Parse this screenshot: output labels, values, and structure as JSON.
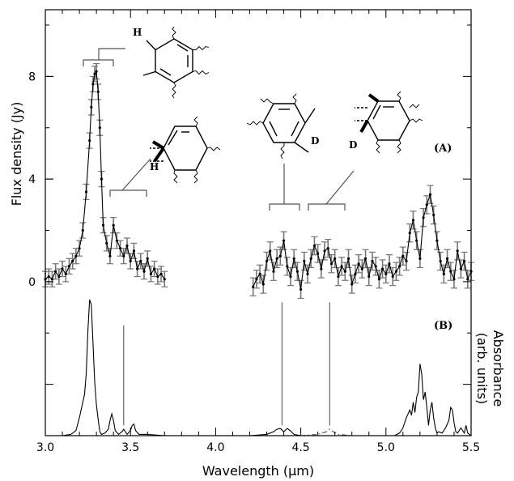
{
  "chart_data": {
    "type": "line",
    "xlabel": "Wavelength (μm)",
    "ylabel": "Flux density (Jy)",
    "ylabel_right": "Absorbance\n(arb. units)",
    "xlim": [
      3.0,
      5.5
    ],
    "ylim": [
      -6,
      10.6
    ],
    "x_ticks": [
      3.0,
      3.5,
      4.0,
      4.5,
      5.0,
      5.5
    ],
    "y_ticks": [
      0,
      4,
      8
    ],
    "panel_labels": [
      "(A)",
      "(B)"
    ],
    "atom_labels": [
      "H",
      "H",
      "D",
      "D"
    ],
    "series": [
      {
        "key": "A",
        "kind": "flux_with_errorbars",
        "segments": [
          {
            "x": [
              3.0,
              3.02,
              3.04,
              3.06,
              3.08,
              3.1,
              3.12,
              3.14,
              3.16,
              3.18,
              3.2,
              3.22,
              3.24,
              3.26,
              3.27,
              3.28,
              3.29,
              3.3,
              3.31,
              3.32,
              3.33,
              3.34,
              3.36,
              3.38,
              3.4,
              3.42,
              3.44,
              3.46,
              3.48,
              3.5,
              3.52,
              3.54,
              3.56,
              3.58,
              3.6,
              3.62,
              3.64,
              3.66,
              3.68,
              3.7
            ],
            "y": [
              0.1,
              0.2,
              0.1,
              0.4,
              0.2,
              0.5,
              0.3,
              0.6,
              0.8,
              1.0,
              1.3,
              2.0,
              3.5,
              5.5,
              6.8,
              7.7,
              8.1,
              8.2,
              7.4,
              6.0,
              4.0,
              2.2,
              1.5,
              1.0,
              2.2,
              1.6,
              1.3,
              1.0,
              1.4,
              0.8,
              1.2,
              0.5,
              0.8,
              0.4,
              0.9,
              0.3,
              0.5,
              0.2,
              0.3,
              0.1
            ],
            "err": [
              0.3,
              0.3,
              0.3,
              0.3,
              0.3,
              0.3,
              0.3,
              0.3,
              0.3,
              0.3,
              0.3,
              0.3,
              0.3,
              0.3,
              0.3,
              0.3,
              0.3,
              0.3,
              0.3,
              0.3,
              0.3,
              0.3,
              0.3,
              0.3,
              0.3,
              0.3,
              0.3,
              0.3,
              0.3,
              0.3,
              0.3,
              0.3,
              0.3,
              0.3,
              0.3,
              0.3,
              0.3,
              0.3,
              0.3,
              0.3
            ]
          },
          {
            "x": [
              4.22,
              4.24,
              4.26,
              4.28,
              4.3,
              4.32,
              4.34,
              4.36,
              4.38,
              4.4,
              4.42,
              4.44,
              4.46,
              4.48,
              4.5,
              4.52,
              4.54,
              4.56,
              4.58,
              4.6,
              4.62,
              4.64,
              4.66,
              4.68,
              4.7,
              4.72,
              4.74,
              4.76,
              4.78,
              4.8,
              4.82,
              4.84,
              4.86,
              4.88,
              4.9,
              4.92,
              4.94,
              4.96,
              4.98,
              5.0,
              5.02,
              5.04,
              5.06,
              5.08,
              5.1,
              5.12,
              5.14,
              5.16,
              5.18,
              5.2,
              5.22,
              5.24,
              5.26,
              5.28,
              5.3,
              5.32,
              5.34,
              5.36,
              5.38,
              5.4,
              5.42,
              5.44,
              5.46,
              5.48,
              5.5
            ],
            "y": [
              -0.2,
              0.1,
              0.3,
              -0.1,
              0.8,
              1.2,
              0.4,
              0.9,
              1.0,
              1.6,
              0.6,
              0.2,
              0.9,
              0.4,
              -0.3,
              0.8,
              0.3,
              0.9,
              1.4,
              1.1,
              0.5,
              1.2,
              1.3,
              0.7,
              0.9,
              0.2,
              0.6,
              0.4,
              0.9,
              -0.1,
              0.3,
              0.7,
              0.5,
              0.9,
              0.2,
              0.8,
              0.6,
              0.1,
              0.5,
              0.3,
              0.7,
              0.2,
              0.4,
              0.6,
              1.0,
              0.8,
              1.9,
              2.4,
              1.6,
              0.9,
              2.5,
              3.0,
              3.4,
              2.6,
              1.6,
              0.8,
              0.3,
              0.9,
              0.4,
              0.1,
              1.2,
              0.5,
              0.8,
              0.1,
              0.4
            ],
            "err": [
              0.35,
              0.35,
              0.35,
              0.35,
              0.35,
              0.35,
              0.35,
              0.35,
              0.35,
              0.35,
              0.35,
              0.35,
              0.35,
              0.35,
              0.35,
              0.35,
              0.35,
              0.35,
              0.35,
              0.35,
              0.35,
              0.35,
              0.35,
              0.35,
              0.35,
              0.35,
              0.35,
              0.35,
              0.35,
              0.35,
              0.35,
              0.35,
              0.35,
              0.35,
              0.35,
              0.35,
              0.35,
              0.35,
              0.35,
              0.35,
              0.35,
              0.35,
              0.35,
              0.35,
              0.35,
              0.35,
              0.35,
              0.35,
              0.35,
              0.35,
              0.35,
              0.35,
              0.35,
              0.35,
              0.35,
              0.35,
              0.35,
              0.35,
              0.35,
              0.35,
              0.35,
              0.35,
              0.35,
              0.35,
              0.35
            ]
          }
        ]
      },
      {
        "key": "B",
        "kind": "absorbance",
        "segments": [
          {
            "x": [
              3.1,
              3.15,
              3.18,
              3.2,
              3.22,
              3.23,
              3.24,
              3.25,
              3.26,
              3.27,
              3.28,
              3.29,
              3.3,
              3.31,
              3.32,
              3.33,
              3.35,
              3.37,
              3.38,
              3.39,
              3.4,
              3.41,
              3.43,
              3.45,
              3.46,
              3.47,
              3.48,
              3.5,
              3.51,
              3.52,
              3.53,
              3.55,
              3.6,
              3.7
            ],
            "y": [
              -6.0,
              -5.95,
              -5.8,
              -5.3,
              -4.7,
              -4.4,
              -3.6,
              -1.9,
              -0.7,
              -0.9,
              -2.4,
              -3.9,
              -4.8,
              -5.35,
              -5.85,
              -5.95,
              -5.9,
              -5.75,
              -5.4,
              -5.15,
              -5.4,
              -5.8,
              -5.95,
              -5.85,
              -5.75,
              -5.85,
              -5.95,
              -5.8,
              -5.6,
              -5.55,
              -5.8,
              -5.95,
              -5.95,
              -6.0
            ]
          },
          {
            "x": [
              4.12,
              4.2,
              4.3,
              4.34,
              4.36,
              4.38,
              4.4,
              4.42,
              4.44,
              4.46,
              4.5
            ],
            "y": [
              -6.0,
              -6.0,
              -5.95,
              -5.85,
              -5.75,
              -5.72,
              -5.85,
              -5.72,
              -5.82,
              -5.95,
              -6.0
            ]
          },
          {
            "x": [
              4.5,
              4.6,
              4.65,
              4.67,
              4.69,
              4.72,
              4.8,
              4.9,
              5.0
            ],
            "y": [
              -6.0,
              -5.95,
              -5.85,
              -5.75,
              -5.85,
              -5.95,
              -6.0,
              -6.0,
              -6.0
            ],
            "style": "dash-dot"
          },
          {
            "x": [
              5.0,
              5.05,
              5.08,
              5.1,
              5.12,
              5.14,
              5.15,
              5.16,
              5.17,
              5.18,
              5.19,
              5.2,
              5.21,
              5.22,
              5.23,
              5.24,
              5.25,
              5.26,
              5.27,
              5.28,
              5.29,
              5.3,
              5.31,
              5.33,
              5.35,
              5.37,
              5.38,
              5.39,
              5.4,
              5.41,
              5.42,
              5.44,
              5.46,
              5.47,
              5.48,
              5.5
            ],
            "y": [
              -6.0,
              -6.0,
              -5.9,
              -5.7,
              -5.3,
              -5.0,
              -5.2,
              -4.7,
              -5.1,
              -4.5,
              -4.3,
              -3.2,
              -3.6,
              -4.6,
              -4.3,
              -4.9,
              -5.6,
              -5.0,
              -4.7,
              -5.3,
              -5.7,
              -5.9,
              -5.85,
              -5.9,
              -5.7,
              -5.4,
              -4.9,
              -5.0,
              -5.5,
              -5.85,
              -5.9,
              -5.7,
              -5.9,
              -5.6,
              -5.9,
              -6.0
            ]
          }
        ]
      }
    ],
    "vertical_markers": [
      {
        "x": 3.46,
        "y_top": -1.7,
        "y_bottom": -5.6
      },
      {
        "x": 4.39,
        "y_top": -0.8,
        "y_bottom": -5.6
      },
      {
        "x": 4.67,
        "y_top": -0.8,
        "y_bottom": -5.6
      }
    ]
  }
}
